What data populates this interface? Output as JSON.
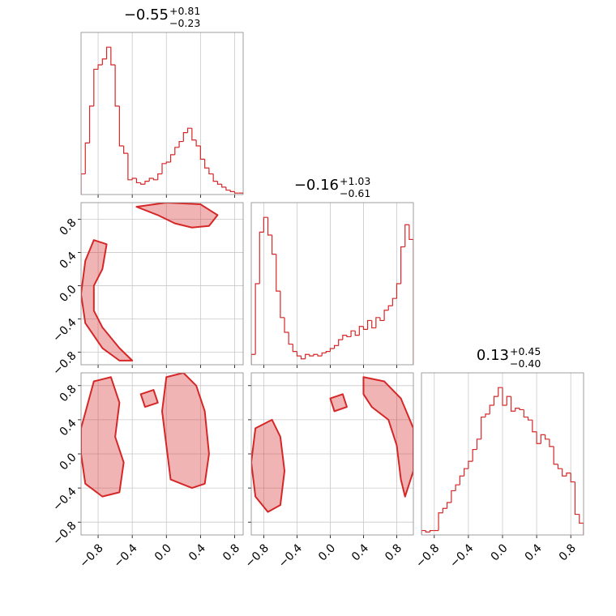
{
  "chart_data": [
    {
      "type": "histogram",
      "title": "−0.55",
      "upper": "+0.81",
      "lower": "−0.23",
      "color": "#d62728",
      "grid": true,
      "xlim": [
        -1.0,
        0.9
      ],
      "ylim": [
        0,
        110
      ],
      "xticks": [
        -0.8,
        -0.4,
        0,
        0.4,
        0.8
      ],
      "bins": [
        -1.0,
        -0.95,
        -0.9,
        -0.85,
        -0.8,
        -0.75,
        -0.7,
        -0.65,
        -0.6,
        -0.55,
        -0.5,
        -0.45,
        -0.4,
        -0.35,
        -0.3,
        -0.25,
        -0.2,
        -0.15,
        -0.1,
        -0.05,
        0.0,
        0.05,
        0.1,
        0.15,
        0.2,
        0.25,
        0.3,
        0.35,
        0.4,
        0.45,
        0.5,
        0.55,
        0.6,
        0.65,
        0.7,
        0.75,
        0.8,
        0.85,
        0.9
      ],
      "values": [
        14,
        35,
        60,
        85,
        88,
        92,
        100,
        88,
        60,
        33,
        28,
        10,
        11,
        8,
        7,
        9,
        11,
        10,
        14,
        21,
        22,
        27,
        32,
        36,
        42,
        45,
        37,
        33,
        24,
        18,
        14,
        9,
        7,
        5,
        3,
        2,
        1,
        1
      ]
    },
    {
      "type": "contour",
      "color": "#d62728",
      "grid": true,
      "xlim": [
        -1.0,
        0.9
      ],
      "ylim": [
        -0.95,
        1.0
      ],
      "xticks": [
        -0.8,
        -0.4,
        0,
        0.4,
        0.8
      ],
      "yticks": [
        {
          "value": -0.8,
          "label": "−0.8"
        },
        {
          "value": -0.4,
          "label": "−0.4"
        },
        {
          "value": 0,
          "label": "0.0"
        },
        {
          "value": 0.4,
          "label": "0.4"
        },
        {
          "value": 0.8,
          "label": "0.8"
        }
      ],
      "contours": [
        {
          "x": [
            -0.35,
            0.0,
            0.4,
            0.6,
            0.5,
            0.3,
            0.1,
            -0.1
          ],
          "y": [
            0.95,
            1.0,
            0.98,
            0.85,
            0.72,
            0.7,
            0.75,
            0.85
          ]
        },
        {
          "x": [
            -0.85,
            -0.7,
            -0.75,
            -0.85,
            -0.85,
            -0.75,
            -0.55,
            -0.4,
            -0.55,
            -0.75,
            -0.95,
            -1.0,
            -0.95
          ],
          "y": [
            0.55,
            0.5,
            0.2,
            0.0,
            -0.3,
            -0.5,
            -0.75,
            -0.9,
            -0.9,
            -0.75,
            -0.45,
            -0.1,
            0.3
          ]
        }
      ]
    },
    {
      "type": "histogram",
      "title": "−0.16",
      "upper": "+1.03",
      "lower": "−0.61",
      "color": "#d62728",
      "grid": true,
      "xlim": [
        -0.95,
        1.0
      ],
      "ylim": [
        0,
        110
      ],
      "xticks": [
        -0.8,
        -0.4,
        0,
        0.4,
        0.8
      ],
      "bins": [
        -0.95,
        -0.9,
        -0.85,
        -0.8,
        -0.75,
        -0.7,
        -0.65,
        -0.6,
        -0.55,
        -0.5,
        -0.45,
        -0.4,
        -0.35,
        -0.3,
        -0.25,
        -0.2,
        -0.15,
        -0.1,
        -0.05,
        0.0,
        0.05,
        0.1,
        0.15,
        0.2,
        0.25,
        0.3,
        0.35,
        0.4,
        0.45,
        0.5,
        0.55,
        0.6,
        0.65,
        0.7,
        0.75,
        0.8,
        0.85,
        0.9,
        0.95,
        1.0
      ],
      "values": [
        7,
        55,
        90,
        100,
        88,
        75,
        50,
        32,
        22,
        14,
        9,
        6,
        4,
        7,
        6,
        7,
        6,
        8,
        9,
        11,
        13,
        17,
        20,
        19,
        23,
        20,
        26,
        24,
        30,
        25,
        32,
        30,
        37,
        40,
        45,
        55,
        80,
        95,
        85
      ]
    },
    {
      "type": "contour",
      "color": "#d62728",
      "grid": true,
      "xlim": [
        -1.0,
        0.9
      ],
      "ylim": [
        -0.95,
        0.95
      ],
      "xticks": [
        {
          "value": -0.8,
          "label": "−0.8"
        },
        {
          "value": -0.4,
          "label": "−0.4"
        },
        {
          "value": 0,
          "label": "0.0"
        },
        {
          "value": 0.4,
          "label": "0.4"
        },
        {
          "value": 0.8,
          "label": "0.8"
        }
      ],
      "yticks": [
        {
          "value": -0.8,
          "label": "−0.8"
        },
        {
          "value": -0.4,
          "label": "−0.4"
        },
        {
          "value": 0,
          "label": "0.0"
        },
        {
          "value": 0.4,
          "label": "0.4"
        },
        {
          "value": 0.8,
          "label": "0.8"
        }
      ],
      "contours": [
        {
          "x": [
            -1.0,
            -0.85,
            -0.65,
            -0.55,
            -0.6,
            -0.5,
            -0.55,
            -0.75,
            -0.95,
            -1.0
          ],
          "y": [
            0.3,
            0.85,
            0.9,
            0.6,
            0.2,
            -0.1,
            -0.45,
            -0.5,
            -0.35,
            0.0
          ]
        },
        {
          "x": [
            0.0,
            0.2,
            0.35,
            0.45,
            0.5,
            0.45,
            0.3,
            0.05,
            0.0,
            -0.05
          ],
          "y": [
            0.9,
            0.95,
            0.8,
            0.5,
            0.0,
            -0.35,
            -0.4,
            -0.3,
            0.1,
            0.5
          ]
        },
        {
          "x": [
            -0.3,
            -0.15,
            -0.1,
            -0.25
          ],
          "y": [
            0.7,
            0.75,
            0.6,
            0.55
          ]
        }
      ]
    },
    {
      "type": "contour",
      "color": "#d62728",
      "grid": true,
      "xlim": [
        -0.95,
        1.0
      ],
      "ylim": [
        -0.95,
        0.95
      ],
      "xticks": [
        {
          "value": -0.8,
          "label": "−0.8"
        },
        {
          "value": -0.4,
          "label": "−0.4"
        },
        {
          "value": 0,
          "label": "0.0"
        },
        {
          "value": 0.4,
          "label": "0.4"
        },
        {
          "value": 0.8,
          "label": "0.8"
        }
      ],
      "yticks": [
        -0.8,
        -0.4,
        0,
        0.4,
        0.8
      ],
      "contours": [
        {
          "x": [
            -0.9,
            -0.7,
            -0.6,
            -0.55,
            -0.6,
            -0.75,
            -0.9,
            -0.95
          ],
          "y": [
            0.3,
            0.4,
            0.2,
            -0.2,
            -0.6,
            -0.68,
            -0.5,
            -0.1
          ]
        },
        {
          "x": [
            0.4,
            0.65,
            0.85,
            1.0,
            1.0,
            0.9,
            0.85,
            0.8,
            0.7,
            0.5,
            0.4
          ],
          "y": [
            0.9,
            0.85,
            0.65,
            0.3,
            -0.2,
            -0.5,
            -0.3,
            0.1,
            0.4,
            0.55,
            0.7
          ]
        },
        {
          "x": [
            0.0,
            0.15,
            0.2,
            0.05
          ],
          "y": [
            0.65,
            0.7,
            0.55,
            0.5
          ]
        }
      ]
    },
    {
      "type": "histogram",
      "title": "0.13",
      "upper": "+0.45",
      "lower": "−0.40",
      "color": "#d62728",
      "grid": true,
      "xlim": [
        -0.95,
        0.95
      ],
      "ylim": [
        0,
        110
      ],
      "xticks": [
        {
          "value": -0.8,
          "label": "−0.8"
        },
        {
          "value": -0.4,
          "label": "−0.4"
        },
        {
          "value": 0,
          "label": "0.0"
        },
        {
          "value": 0.4,
          "label": "0.4"
        },
        {
          "value": 0.8,
          "label": "0.8"
        }
      ],
      "bins": [
        -0.95,
        -0.9,
        -0.85,
        -0.8,
        -0.75,
        -0.7,
        -0.65,
        -0.6,
        -0.55,
        -0.5,
        -0.45,
        -0.4,
        -0.35,
        -0.3,
        -0.25,
        -0.2,
        -0.15,
        -0.1,
        -0.05,
        0.0,
        0.05,
        0.1,
        0.15,
        0.2,
        0.25,
        0.3,
        0.35,
        0.4,
        0.45,
        0.5,
        0.55,
        0.6,
        0.65,
        0.7,
        0.75,
        0.8,
        0.85,
        0.9,
        0.95
      ],
      "values": [
        3,
        2,
        3,
        3,
        15,
        18,
        22,
        30,
        34,
        40,
        45,
        50,
        58,
        65,
        80,
        82,
        88,
        94,
        100,
        88,
        94,
        84,
        86,
        85,
        80,
        78,
        70,
        62,
        68,
        65,
        60,
        48,
        45,
        40,
        42,
        36,
        14,
        8
      ]
    }
  ]
}
